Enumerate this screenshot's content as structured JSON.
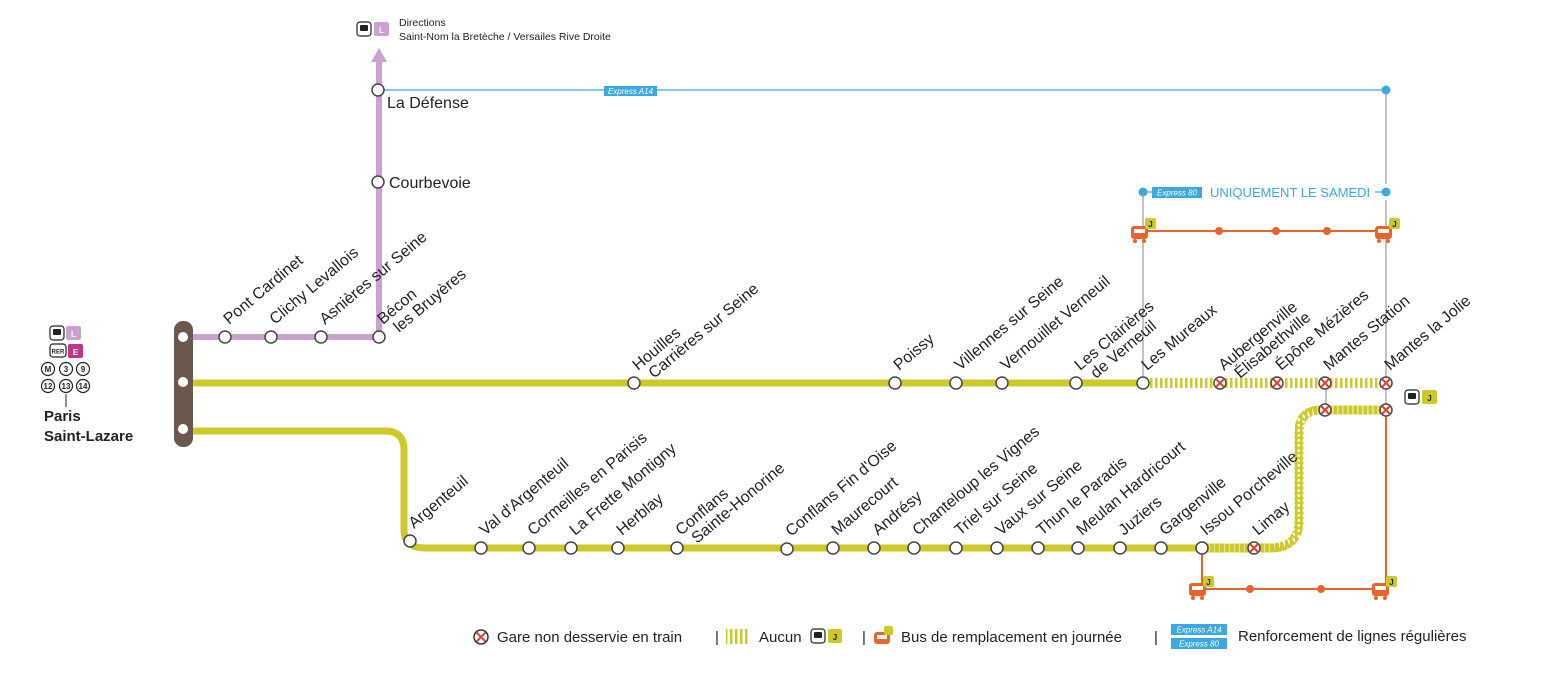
{
  "colors": {
    "line_L": "#c9a2d0",
    "line_J": "#cdc928",
    "hub": "#6b574b",
    "bus": "#e8642a",
    "express": "#3ba9e0",
    "closed": "#e53e2e",
    "rer_e": "#c1348a"
  },
  "hub": {
    "name_line1": "Paris",
    "name_line2": "Saint-Lazare",
    "line_L_badge": "L",
    "line_E_badge": "E",
    "rer_badge": "RER",
    "metro_badge": "M",
    "metro_lines": [
      "3",
      "9",
      "12",
      "13",
      "14"
    ]
  },
  "direction": {
    "title": "Directions",
    "destinations": "Saint-Nom la Bretèche / Versailes Rive Droite",
    "badge": "L"
  },
  "branch_L": [
    {
      "name": "Pont Cardinet"
    },
    {
      "name": "Clichy Levallois"
    },
    {
      "name": "Asnières sur Seine"
    },
    {
      "name": "Bécon",
      "name2": "les Bruyères"
    },
    {
      "name": "Courbevoie"
    },
    {
      "name": "La Défense"
    }
  ],
  "branch_poissy": [
    {
      "name": "Houilles",
      "name2": "Carrières sur Seine",
      "closed": false
    },
    {
      "name": "Poissy",
      "closed": false
    },
    {
      "name": "Villennes sur Seine",
      "closed": false
    },
    {
      "name": "Vernouillet Verneuil",
      "closed": false
    },
    {
      "name": "Les Clairières",
      "name2": "de Verneuil",
      "closed": false
    },
    {
      "name": "Les Mureaux",
      "closed": false
    },
    {
      "name": "Aubergenville",
      "name2": "Élisabethville",
      "closed": true
    },
    {
      "name": "Épône Mézières",
      "closed": true
    },
    {
      "name": "Mantes Station",
      "closed": true
    },
    {
      "name": "Mantes la Jolie",
      "closed": true
    }
  ],
  "branch_conflans": [
    {
      "name": "Argenteuil",
      "closed": false
    },
    {
      "name": "Val d'Argenteuil",
      "closed": false
    },
    {
      "name": "Cormeilles en Parisis",
      "closed": false
    },
    {
      "name": "La Frette  Montigny",
      "closed": false
    },
    {
      "name": "Herblay",
      "closed": false
    },
    {
      "name": "Conflans",
      "name2": "Sainte-Honorine",
      "closed": false
    },
    {
      "name": "Conflans Fin d'Oise",
      "closed": false
    },
    {
      "name": "Maurecourt",
      "closed": false
    },
    {
      "name": "Andrésy",
      "closed": false
    },
    {
      "name": "Chanteloup les Vignes",
      "closed": false
    },
    {
      "name": "Triel sur Seine",
      "closed": false
    },
    {
      "name": "Vaux sur Seine",
      "closed": false
    },
    {
      "name": "Thun le Paradis",
      "closed": false
    },
    {
      "name": "Meulan Hardricourt",
      "closed": false
    },
    {
      "name": "Juziers",
      "closed": false
    },
    {
      "name": "Gargenville",
      "closed": false
    },
    {
      "name": "Issou Porcheville",
      "closed": false
    },
    {
      "name": "Limay",
      "closed": true
    }
  ],
  "express": {
    "a14_label": "Express A14",
    "e80_label": "Express 80",
    "saturday_note": "UNIQUEMENT LE SAMEDI"
  },
  "legend": {
    "closed_label": "Gare non desservie en train",
    "none_label": "Aucun",
    "bus_label": "Bus de remplacement en journée",
    "reinforce_label": "Renforcement de lignes régulières",
    "separator": "|",
    "j_badge": "J"
  }
}
